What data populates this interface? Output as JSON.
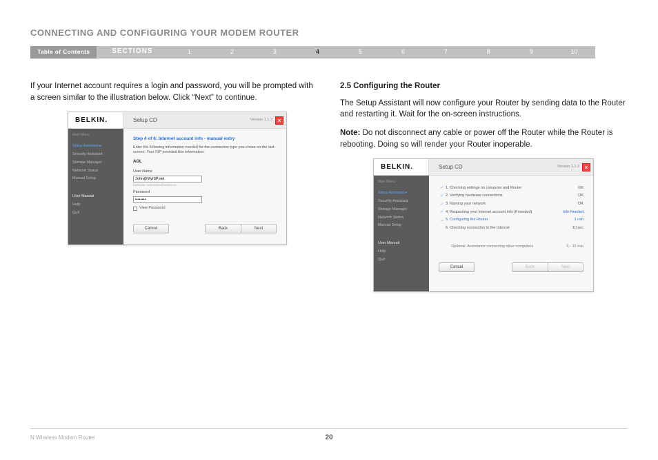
{
  "page": {
    "title": "CONNECTING AND CONFIGURING YOUR MODEM ROUTER",
    "footer_label": "N Wireless Modem Router",
    "page_number": "20"
  },
  "nav": {
    "toc": "Table of Contents",
    "sections_label": "SECTIONS",
    "items": [
      "1",
      "2",
      "3",
      "4",
      "5",
      "6",
      "7",
      "8",
      "9",
      "10"
    ],
    "active_index": 3
  },
  "left": {
    "intro": "If your Internet account requires a login and password, you will be prompted with a screen similar to the illustration below. Click “Next” to continue."
  },
  "right": {
    "heading": "2.5 Configuring the Router",
    "p1": "The Setup Assistant will now configure your Router by sending data to the Router and restarting it. Wait for the on-screen instructions.",
    "note_label": "Note:",
    "note_text": " Do not disconnect any cable or power off the Router while the Router is rebooting. Doing so will render your Router inoperable."
  },
  "dialog": {
    "logo": "BELKIN.",
    "title": "Setup CD",
    "version": "Version 1.1.3",
    "close": "✕",
    "sidebar": {
      "main_menu": "Main Menu",
      "items": [
        {
          "label": "Setup Assistant  ▸",
          "active": true
        },
        {
          "label": "Security Assistant"
        },
        {
          "label": "Storage Manager"
        },
        {
          "label": "Network Status"
        },
        {
          "label": "Manual Setup"
        }
      ],
      "bottom": [
        {
          "label": "User Manual",
          "bold": true
        },
        {
          "label": "Help"
        },
        {
          "label": "Quit"
        }
      ]
    }
  },
  "dlg_left": {
    "step_title": "Step 4 of 6: Internet account info - manual entry",
    "step_desc": "Enter the following information needed for the connection type you chose on the last screen. Your ISP provided this information.",
    "isp": "AOL",
    "username_label": "User Name",
    "username_value": "John@MyISP.net",
    "username_hint": "Example: username@aolnet.xx",
    "password_label": "Password",
    "password_value": "••••••••",
    "view_pw": "View Password",
    "btn_cancel": "Cancel",
    "btn_back": "Back",
    "btn_next": "Next"
  },
  "dlg_right": {
    "steps": [
      {
        "icon": "check",
        "text": "1. Checking settings on computer and Router",
        "status": "OK"
      },
      {
        "icon": "check",
        "text": "2. Verifying hardware connections",
        "status": "OK"
      },
      {
        "icon": "check",
        "text": "3. Naming your network",
        "status": "OK"
      },
      {
        "icon": "check",
        "text": "4. Requesting your Internet account info (if needed)",
        "status": "Info Needed",
        "status_class": "info"
      },
      {
        "icon": "arrow",
        "text": "5. Configuring the Router",
        "status": "1 min",
        "active": true
      },
      {
        "icon": "",
        "text": "6. Checking connection to the Internet",
        "status": "10 sec"
      }
    ],
    "optional_text": "Optional: Assistance connecting other computers",
    "optional_status": "5 - 15 min",
    "btn_cancel": "Cancel",
    "btn_back": "Back",
    "btn_next": "Next"
  }
}
